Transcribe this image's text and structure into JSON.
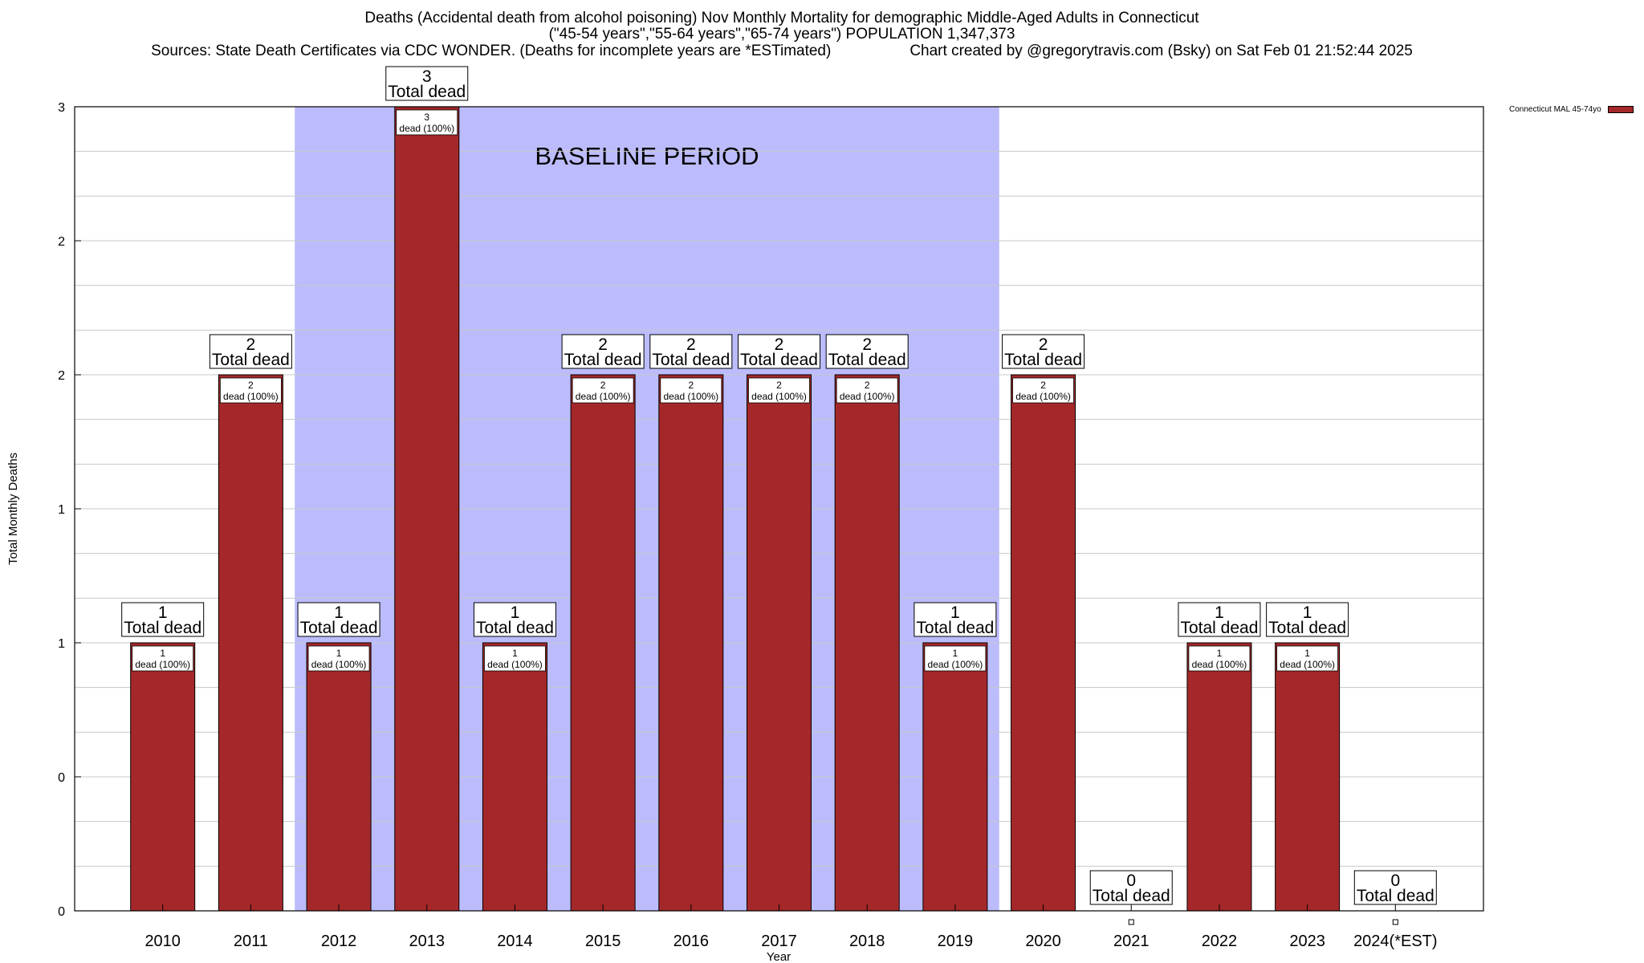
{
  "title": {
    "line1": "Deaths (Accidental death from alcohol poisoning) Nov Monthly Mortality for demographic Middle-Aged Adults in Connecticut",
    "line2": "(\"45-54 years\",\"55-64 years\",\"65-74 years\") POPULATION 1,347,373",
    "line3_sources": "Sources: State Death Certificates via CDC WONDER. (Deaths for incomplete years are *ESTimated)",
    "line3_credit": "Chart created by @gregorytravis.com (Bsky) on Sat Feb 01 21:52:44 2025"
  },
  "legend": {
    "label": "Connecticut MAL 45-74yo",
    "color": "#a4282a"
  },
  "chart_data": {
    "type": "bar",
    "xlabel": "Year",
    "ylabel": "Total Monthly Deaths",
    "ylim": [
      0,
      3
    ],
    "yticks": [
      0,
      0.5,
      1,
      1.5,
      2,
      2.5,
      3
    ],
    "ytick_labels": [
      "0",
      "0",
      "1",
      "1",
      "2",
      "2",
      "3"
    ],
    "bar_color": "#a4282a",
    "baseline_color": "#bcbcfd",
    "baseline_label": "BASELINE PERIOD",
    "baseline_range": [
      "2012",
      "2019"
    ],
    "categories": [
      "2010",
      "2011",
      "2012",
      "2013",
      "2014",
      "2015",
      "2016",
      "2017",
      "2018",
      "2019",
      "2020",
      "2021",
      "2022",
      "2023",
      "2024(*EST)"
    ],
    "values": [
      1,
      2,
      1,
      3,
      1,
      2,
      2,
      2,
      2,
      1,
      2,
      0,
      1,
      1,
      0
    ],
    "total_label_text": "Total dead",
    "inner_label_text": "dead (100%)"
  }
}
